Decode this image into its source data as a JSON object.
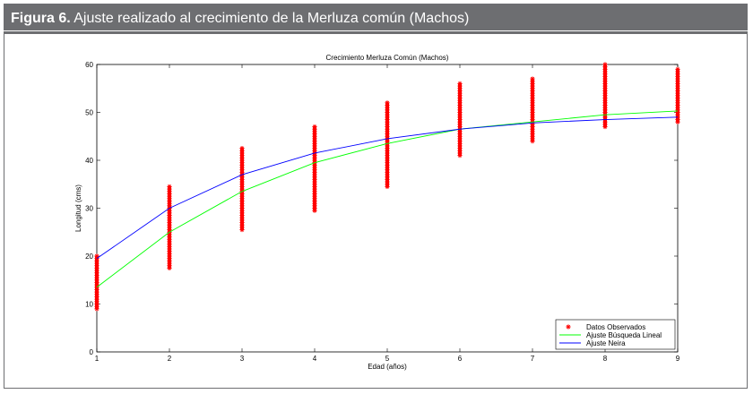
{
  "figure": {
    "label": "Figura 6.",
    "caption": "Ajuste realizado al crecimiento de la Merluza común (Machos)"
  },
  "colors": {
    "header_bg": "#6d6e71",
    "observed": "#ff0000",
    "lineal": "#00ff00",
    "neira": "#0000ff"
  },
  "chart_data": {
    "type": "scatter",
    "title": "Crecimiento Merluza Común (Machos)",
    "xlabel": "Edad (años)",
    "ylabel": "Longitud (cms)",
    "xlim": [
      1,
      9
    ],
    "ylim": [
      0,
      60
    ],
    "xticks": [
      1,
      2,
      3,
      4,
      5,
      6,
      7,
      8,
      9
    ],
    "yticks": [
      0,
      10,
      20,
      30,
      40,
      50,
      60
    ],
    "grid": false,
    "legend_position": "bottom-right",
    "observed_ranges": [
      {
        "x": 1,
        "min": 9,
        "max": 20
      },
      {
        "x": 2,
        "min": 17.5,
        "max": 34.5
      },
      {
        "x": 3,
        "min": 25.5,
        "max": 42.5
      },
      {
        "x": 4,
        "min": 29.5,
        "max": 47
      },
      {
        "x": 5,
        "min": 34.5,
        "max": 52
      },
      {
        "x": 6,
        "min": 41,
        "max": 56
      },
      {
        "x": 7,
        "min": 44,
        "max": 57
      },
      {
        "x": 8,
        "min": 47,
        "max": 60
      },
      {
        "x": 9,
        "min": 48,
        "max": 59
      }
    ],
    "series": [
      {
        "name": "Datos Observados",
        "marker": "*",
        "color": "#ff0000"
      },
      {
        "name": "Ajuste Búsqueda Lineal",
        "color": "#00ff00",
        "x": [
          1,
          2,
          3,
          4,
          5,
          6,
          7,
          8,
          9
        ],
        "y": [
          13.5,
          25,
          33.5,
          39.5,
          43.5,
          46.5,
          48,
          49.5,
          50.3
        ]
      },
      {
        "name": "Ajuste Neira",
        "color": "#0000ff",
        "x": [
          1,
          2,
          3,
          4,
          5,
          6,
          7,
          8,
          9
        ],
        "y": [
          19.5,
          30,
          37,
          41.5,
          44.5,
          46.5,
          47.8,
          48.5,
          49
        ]
      }
    ]
  }
}
